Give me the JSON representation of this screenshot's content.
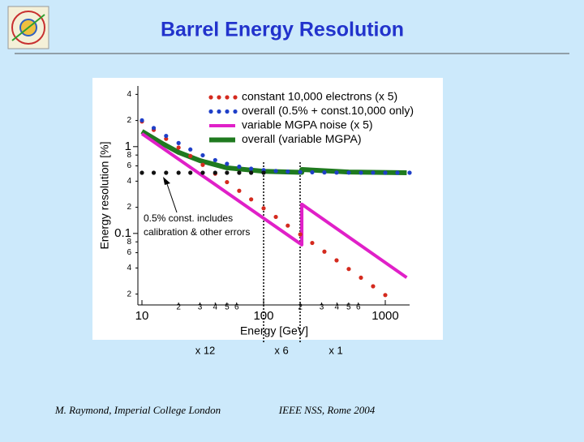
{
  "slide_title": "Barrel Energy Resolution",
  "footer": {
    "left": "M. Raymond, Imperial College London",
    "right": "IEEE NSS, Rome 2004"
  },
  "gain_labels": [
    "x 12",
    "x 6",
    "x 1"
  ],
  "chart_data": {
    "type": "line",
    "xlabel": "Energy [GeV]",
    "ylabel": "Energy resolution [%]",
    "annotation": [
      "0.5% const. includes",
      "calibration & other errors"
    ],
    "xscale": "log",
    "yscale": "log",
    "xlim": [
      10,
      1585
    ],
    "ylim": [
      0.015,
      5
    ],
    "xticks": [
      10,
      {
        "value": 20,
        "label": "2"
      },
      {
        "value": 30,
        "label": "3"
      },
      {
        "value": 40,
        "label": "4"
      },
      {
        "value": 50,
        "label": "5"
      },
      {
        "value": 60,
        "label": "6"
      },
      100,
      {
        "value": 200,
        "label": "2"
      },
      {
        "value": 300,
        "label": "3"
      },
      {
        "value": 400,
        "label": "4"
      },
      {
        "value": 500,
        "label": "5"
      },
      {
        "value": 600,
        "label": "6"
      },
      1000
    ],
    "yticks": [
      4,
      2,
      1,
      {
        "value": 0.8,
        "label": "8"
      },
      {
        "value": 0.6,
        "label": "6"
      },
      {
        "value": 0.4,
        "label": "4"
      },
      {
        "value": 0.2,
        "label": "2"
      },
      0.1,
      {
        "value": 0.08,
        "label": "8"
      },
      {
        "value": 0.06,
        "label": "6"
      },
      {
        "value": 0.04,
        "label": "4"
      },
      {
        "value": 0.02,
        "label": "2"
      }
    ],
    "series": [
      {
        "name": "constant 10,000 electrons (x 5)",
        "color": "#d42a1e",
        "style": "dots",
        "x": [
          10,
          12.5,
          15.8,
          20,
          25,
          31.6,
          40,
          50,
          63,
          79,
          100,
          126,
          158,
          200,
          251,
          316,
          398,
          501,
          631,
          794,
          1000
        ],
        "values": [
          1.95,
          1.56,
          1.23,
          0.975,
          0.78,
          0.617,
          0.488,
          0.39,
          0.31,
          0.247,
          0.195,
          0.155,
          0.123,
          0.0975,
          0.0777,
          0.0617,
          0.049,
          0.0389,
          0.0309,
          0.0246,
          0.0195
        ]
      },
      {
        "name": "overall (0.5% + const.10,000 only)",
        "color": "#1f3fc8",
        "style": "dots",
        "x": [
          10,
          12.5,
          15.8,
          20,
          25,
          31.6,
          40,
          50,
          63,
          79,
          100,
          126,
          158,
          200,
          251,
          316,
          398,
          501,
          631,
          794,
          1000,
          1259,
          1585
        ],
        "values": [
          2.01,
          1.64,
          1.33,
          1.1,
          0.928,
          0.795,
          0.699,
          0.634,
          0.588,
          0.558,
          0.537,
          0.524,
          0.515,
          0.509,
          0.506,
          0.504,
          0.502,
          0.502,
          0.501,
          0.501,
          0.5,
          0.5,
          0.5
        ]
      },
      {
        "name": "variable MGPA noise (x 5)",
        "color": "#e020c8",
        "style": "line",
        "width": 4,
        "x": [
          10,
          206,
          206,
          1500
        ],
        "values": [
          1.41,
          0.074,
          0.217,
          0.031
        ]
      },
      {
        "name": "overall (variable MGPA)",
        "color": "#1f7a1f",
        "style": "line",
        "width": 6,
        "x": [
          10,
          15,
          20,
          30,
          50,
          100,
          206,
          206,
          500,
          1500
        ],
        "values": [
          1.5,
          1.07,
          0.86,
          0.69,
          0.57,
          0.52,
          0.505,
          0.545,
          0.51,
          0.5
        ]
      },
      {
        "color": "#111111",
        "style": "dots",
        "x": [
          10,
          12.5,
          15.8,
          20,
          25,
          31.6,
          40,
          50,
          63,
          79,
          100
        ],
        "values": [
          0.5,
          0.5,
          0.5,
          0.5,
          0.5,
          0.5,
          0.5,
          0.5,
          0.5,
          0.5,
          0.5
        ]
      }
    ]
  }
}
